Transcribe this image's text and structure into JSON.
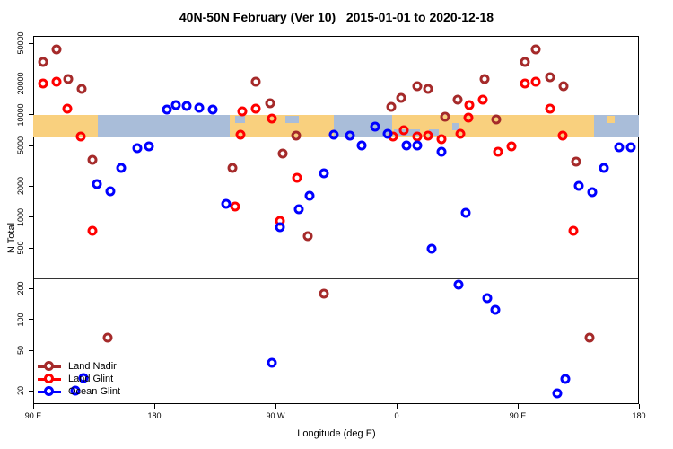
{
  "title": "40N-50N February (Ver 10)   2015-01-01 to 2020-12-18",
  "chart_data": {
    "type": "scatter",
    "title": "40N-50N February (Ver 10)   2015-01-01 to 2020-12-18",
    "xlabel": "Longitude (deg E)",
    "ylabel": "N Total",
    "x_axis": {
      "range_deg_e": [
        90,
        540
      ],
      "ticks": [
        {
          "lon": 90,
          "label": "90 E"
        },
        {
          "lon": 180,
          "label": "180"
        },
        {
          "lon": 270,
          "label": "90 W"
        },
        {
          "lon": 360,
          "label": "0"
        },
        {
          "lon": 450,
          "label": "90 E"
        },
        {
          "lon": 540,
          "label": "180"
        }
      ]
    },
    "y_axis": {
      "scale": "log",
      "range": [
        15,
        59000
      ],
      "ticks": [
        {
          "n": 20,
          "label": "20"
        },
        {
          "n": 50,
          "label": "50"
        },
        {
          "n": 100,
          "label": "100"
        },
        {
          "n": 200,
          "label": "200"
        },
        {
          "n": 500,
          "label": "500"
        },
        {
          "n": 1000,
          "label": "1000"
        },
        {
          "n": 2000,
          "label": "2000"
        },
        {
          "n": 5000,
          "label": "5000"
        },
        {
          "n": 10000,
          "label": "10000"
        },
        {
          "n": 20000,
          "label": "20000"
        },
        {
          "n": 50000,
          "label": "50000"
        }
      ]
    },
    "grid": false,
    "threshold_line_n": 250,
    "map_band": {
      "n_top": 10000,
      "n_bottom": 6000,
      "land_color": "#F9D07E",
      "ocean_color": "#A9BDD9",
      "segments": [
        {
          "kind": "land",
          "lon0": 90,
          "lon1": 138
        },
        {
          "kind": "ocean",
          "lon0": 138,
          "lon1": 236
        },
        {
          "kind": "land",
          "lon0": 236,
          "lon1": 313.5
        },
        {
          "kind": "ocean",
          "lon0": 313.5,
          "lon1": 356.5
        },
        {
          "kind": "land",
          "lon0": 356.5,
          "lon1": 506.5
        },
        {
          "kind": "ocean",
          "lon0": 506.5,
          "lon1": 540
        }
      ],
      "patches": [
        {
          "kind": "ocean",
          "lon0": 240,
          "lon1": 247,
          "v": "top"
        },
        {
          "kind": "ocean",
          "lon0": 277,
          "lon1": 287,
          "v": "top"
        },
        {
          "kind": "ocean",
          "lon0": 358,
          "lon1": 377,
          "v": "bottom"
        },
        {
          "kind": "ocean",
          "lon0": 384,
          "lon1": 391,
          "v": "bottom"
        },
        {
          "kind": "ocean",
          "lon0": 401,
          "lon1": 406,
          "v": "mid"
        },
        {
          "kind": "land",
          "lon0": 500,
          "lon1": 506,
          "v": "bottom"
        },
        {
          "kind": "land",
          "lon0": 516,
          "lon1": 522,
          "v": "top"
        }
      ]
    },
    "legend_position": "bottom-left",
    "series": [
      {
        "name": "Land Nadir",
        "color": "#A52A2A",
        "points": [
          [
            107,
            43000
          ],
          [
            97,
            33000
          ],
          [
            116,
            22500
          ],
          [
            126,
            18000
          ],
          [
            134,
            3600
          ],
          [
            145,
            66
          ],
          [
            238,
            3000
          ],
          [
            255,
            21000
          ],
          [
            266,
            13000
          ],
          [
            275,
            4200
          ],
          [
            285,
            6200
          ],
          [
            294,
            650
          ],
          [
            306,
            180
          ],
          [
            356,
            12000
          ],
          [
            363,
            14500
          ],
          [
            375,
            19000
          ],
          [
            383,
            18000
          ],
          [
            396,
            9500
          ],
          [
            405,
            14000
          ],
          [
            425,
            22500
          ],
          [
            434,
            9000
          ],
          [
            455,
            33000
          ],
          [
            463,
            43000
          ],
          [
            474,
            23000
          ],
          [
            484,
            19000
          ],
          [
            493,
            3500
          ],
          [
            503,
            66
          ]
        ]
      },
      {
        "name": "Land Glint",
        "color": "#FF0000",
        "points": [
          [
            97,
            20000
          ],
          [
            107,
            21000
          ],
          [
            115,
            11500
          ],
          [
            125,
            6100
          ],
          [
            134,
            730
          ],
          [
            240,
            1270
          ],
          [
            244,
            6400
          ],
          [
            245,
            10800
          ],
          [
            255,
            11500
          ],
          [
            267,
            9200
          ],
          [
            273,
            920
          ],
          [
            286,
            2400
          ],
          [
            357,
            6100
          ],
          [
            365,
            7000
          ],
          [
            375,
            6100
          ],
          [
            383,
            6300
          ],
          [
            393,
            5800
          ],
          [
            407,
            6500
          ],
          [
            413,
            9400
          ],
          [
            414,
            12400
          ],
          [
            424,
            14000
          ],
          [
            435,
            4300
          ],
          [
            445,
            4900
          ],
          [
            455,
            20000
          ],
          [
            463,
            21000
          ],
          [
            474,
            11500
          ],
          [
            483,
            6300
          ],
          [
            491,
            730
          ]
        ]
      },
      {
        "name": "Ocean Glint",
        "color": "#0000FF",
        "points": [
          [
            121,
            20
          ],
          [
            127,
            27
          ],
          [
            137,
            2100
          ],
          [
            147,
            1800
          ],
          [
            155,
            3000
          ],
          [
            167,
            4700
          ],
          [
            176,
            4900
          ],
          [
            189,
            11200
          ],
          [
            196,
            12400
          ],
          [
            204,
            12200
          ],
          [
            213,
            11700
          ],
          [
            223,
            11200
          ],
          [
            233,
            1350
          ],
          [
            267,
            38
          ],
          [
            273,
            800
          ],
          [
            287,
            1200
          ],
          [
            295,
            1600
          ],
          [
            306,
            2700
          ],
          [
            313,
            6400
          ],
          [
            325,
            6300
          ],
          [
            334,
            5000
          ],
          [
            344,
            7600
          ],
          [
            353,
            6500
          ],
          [
            367,
            5000
          ],
          [
            375,
            4950
          ],
          [
            386,
            490
          ],
          [
            393,
            4300
          ],
          [
            406,
            220
          ],
          [
            411,
            1100
          ],
          [
            427,
            160
          ],
          [
            433,
            125
          ],
          [
            479,
            19
          ],
          [
            485,
            26
          ],
          [
            495,
            2000
          ],
          [
            505,
            1750
          ],
          [
            514,
            3000
          ],
          [
            525,
            4800
          ],
          [
            534,
            4850
          ]
        ]
      }
    ]
  }
}
